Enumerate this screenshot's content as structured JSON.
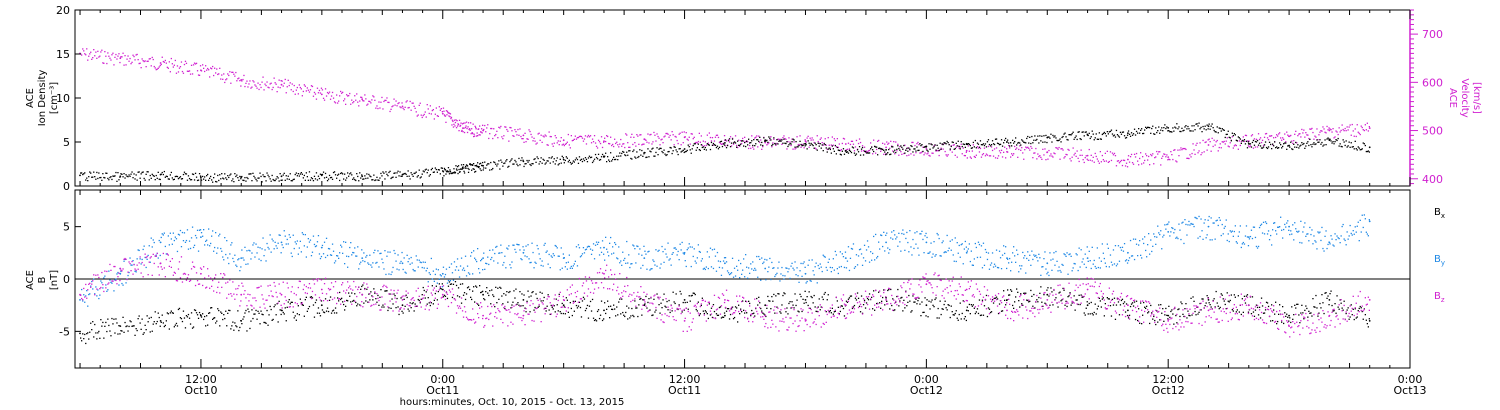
{
  "colors": {
    "black": "#000000",
    "magenta": "#d020d0",
    "blue": "#1e88e5",
    "frame": "#000000"
  },
  "chart_data": [
    {
      "type": "scatter",
      "panel": "top",
      "ylabel_left": [
        "ACE",
        "Ion Density",
        "[cm⁻³]"
      ],
      "ylabel_right": [
        "ACE",
        "Velocity",
        "[km/s]"
      ],
      "ylim_left": [
        0,
        20
      ],
      "yticks_left": [
        "0",
        "5",
        "10",
        "15",
        "20"
      ],
      "ylim_right": [
        385,
        750
      ],
      "yticks_right": [
        "400",
        "500",
        "600",
        "700"
      ],
      "x_unit": "hours since Oct 10 00:00",
      "xlim": [
        5.75,
        72
      ],
      "series": [
        {
          "name": "Ion Density",
          "axis": "left",
          "color": "black",
          "x": [
            6,
            8,
            10,
            12,
            14,
            16,
            18,
            20,
            22,
            24,
            25,
            26,
            28,
            30,
            32,
            34,
            36,
            38,
            40,
            42,
            44,
            46,
            48,
            50,
            52,
            54,
            56,
            58,
            60,
            62,
            64,
            66,
            68,
            70
          ],
          "y": [
            1.2,
            1.1,
            1.3,
            1.0,
            1.0,
            1.1,
            1.2,
            1.1,
            1.3,
            1.7,
            2.0,
            2.3,
            2.8,
            3.0,
            3.3,
            3.8,
            4.2,
            4.9,
            5.2,
            4.8,
            4.0,
            4.1,
            4.5,
            4.8,
            5.0,
            5.5,
            5.8,
            6.0,
            6.6,
            6.8,
            4.8,
            4.6,
            5.2,
            4.4
          ]
        },
        {
          "name": "Velocity",
          "axis": "right",
          "color": "magenta",
          "x": [
            6,
            8,
            10,
            12,
            14,
            16,
            18,
            20,
            22,
            24,
            25,
            26,
            28,
            30,
            32,
            34,
            36,
            38,
            40,
            42,
            44,
            46,
            48,
            50,
            52,
            54,
            56,
            58,
            60,
            62,
            64,
            66,
            68,
            70
          ],
          "y": [
            660,
            650,
            640,
            625,
            605,
            595,
            575,
            565,
            550,
            535,
            505,
            500,
            490,
            480,
            478,
            482,
            486,
            480,
            475,
            478,
            472,
            465,
            462,
            458,
            456,
            455,
            448,
            440,
            445,
            470,
            478,
            488,
            500,
            505
          ]
        }
      ]
    },
    {
      "type": "scatter",
      "panel": "bottom",
      "ylabel_left": [
        "ACE",
        "B",
        "[nT]"
      ],
      "ylim": [
        -8.5,
        8.5
      ],
      "yticks": [
        "-5",
        "0",
        "5"
      ],
      "zero_line": true,
      "x_unit": "hours since Oct 10 00:00",
      "xlim": [
        5.75,
        72
      ],
      "series": [
        {
          "name": "Bx",
          "color": "black",
          "x": [
            6,
            8,
            10,
            12,
            14,
            16,
            18,
            20,
            22,
            24,
            26,
            28,
            30,
            32,
            34,
            36,
            38,
            40,
            42,
            44,
            46,
            48,
            50,
            52,
            54,
            56,
            58,
            60,
            62,
            64,
            66,
            68,
            70
          ],
          "y": [
            -5.2,
            -4.5,
            -4.0,
            -3.5,
            -4.0,
            -3.0,
            -2.5,
            -1.5,
            -2.5,
            -1.0,
            -1.5,
            -2.0,
            -2.5,
            -3.0,
            -2.5,
            -2.0,
            -3.5,
            -2.5,
            -2.0,
            -2.5,
            -1.8,
            -2.5,
            -3.0,
            -2.0,
            -1.5,
            -2.5,
            -3.0,
            -3.5,
            -2.0,
            -2.5,
            -3.5,
            -2.0,
            -4.0
          ]
        },
        {
          "name": "By",
          "color": "blue",
          "x": [
            6,
            8,
            10,
            12,
            14,
            16,
            18,
            20,
            22,
            24,
            26,
            28,
            30,
            32,
            34,
            36,
            38,
            40,
            42,
            44,
            46,
            48,
            50,
            52,
            54,
            56,
            58,
            60,
            62,
            64,
            66,
            68,
            70
          ],
          "y": [
            -2.0,
            0.5,
            3.5,
            4.0,
            2.0,
            3.5,
            3.0,
            2.0,
            1.5,
            0.5,
            2.0,
            2.5,
            2.0,
            3.0,
            2.0,
            2.5,
            1.5,
            1.0,
            0.5,
            2.0,
            3.5,
            3.5,
            2.5,
            2.0,
            1.5,
            2.0,
            2.5,
            4.5,
            5.0,
            4.0,
            5.0,
            3.5,
            5.5
          ]
        },
        {
          "name": "Bz",
          "color": "magenta",
          "x": [
            6,
            8,
            10,
            12,
            14,
            16,
            18,
            20,
            22,
            24,
            26,
            28,
            30,
            32,
            34,
            36,
            38,
            40,
            42,
            44,
            46,
            48,
            50,
            52,
            54,
            56,
            58,
            60,
            62,
            64,
            66,
            68,
            70
          ],
          "y": [
            -1.5,
            1.0,
            1.5,
            0.5,
            -1.5,
            -1.5,
            -1.0,
            -1.5,
            -2.0,
            -1.5,
            -3.5,
            -3.5,
            -2.0,
            0.5,
            -2.0,
            -4.0,
            -2.0,
            -3.5,
            -4.0,
            -2.5,
            -2.0,
            -0.5,
            -1.0,
            -3.0,
            -2.0,
            -1.0,
            -2.5,
            -4.0,
            -3.0,
            -2.5,
            -4.5,
            -3.5,
            -2.0
          ]
        }
      ],
      "legend": [
        "Bx",
        "By",
        "Bz"
      ],
      "legend_placement": "right"
    }
  ],
  "x_axis": {
    "ticks": [
      {
        "x": 12,
        "time": "12:00",
        "date": "Oct10"
      },
      {
        "x": 24,
        "time": "0:00",
        "date": "Oct11"
      },
      {
        "x": 36,
        "time": "12:00",
        "date": "Oct11"
      },
      {
        "x": 48,
        "time": "0:00",
        "date": "Oct12"
      },
      {
        "x": 60,
        "time": "12:00",
        "date": "Oct12"
      },
      {
        "x": 72,
        "time": "0:00",
        "date": "Oct13"
      }
    ],
    "label": "hours:minutes, Oct. 10, 2015 - Oct. 13, 2015"
  },
  "legend_labels": {
    "bx": {
      "main": "B",
      "sub": "x"
    },
    "by": {
      "main": "B",
      "sub": "y"
    },
    "bz": {
      "main": "B",
      "sub": "z"
    }
  }
}
